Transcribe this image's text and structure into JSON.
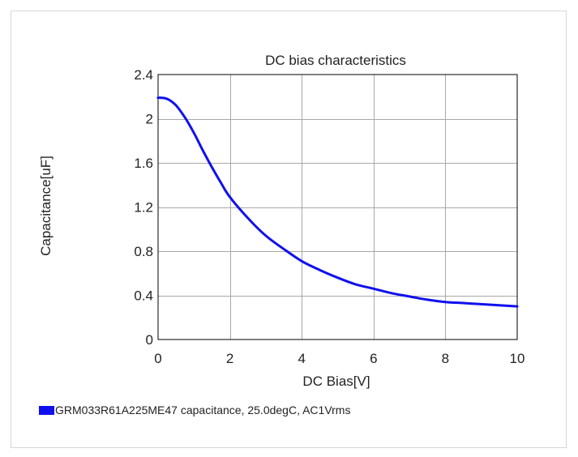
{
  "chart_data": {
    "type": "line",
    "title": "DC bias characteristics",
    "xlabel": "DC Bias[V]",
    "ylabel": "Capacitance[uF]",
    "xlim": [
      0,
      10
    ],
    "ylim": [
      0,
      2.4
    ],
    "xticks": [
      0,
      2,
      4,
      6,
      8,
      10
    ],
    "yticks": [
      0,
      0.4,
      0.8,
      1.2,
      1.6,
      2,
      2.4
    ],
    "xtick_labels": [
      "0",
      "2",
      "4",
      "6",
      "8",
      "10"
    ],
    "ytick_labels": [
      "0",
      "0.4",
      "0.8",
      "1.2",
      "1.6",
      "2",
      "2.4"
    ],
    "grid": true,
    "legend_position": "bottom-left",
    "series": [
      {
        "name": "GRM033R61A225ME47 capacitance, 25.0degC, AC1Vrms",
        "color": "#1010ee",
        "x": [
          0,
          0.25,
          0.5,
          0.75,
          1,
          1.25,
          1.5,
          1.75,
          2,
          2.5,
          3,
          3.5,
          4,
          4.5,
          5,
          5.5,
          6,
          6.5,
          7,
          7.5,
          8,
          8.5,
          9,
          9.5,
          10
        ],
        "y": [
          2.19,
          2.18,
          2.12,
          2.01,
          1.87,
          1.71,
          1.56,
          1.42,
          1.29,
          1.1,
          0.94,
          0.82,
          0.71,
          0.63,
          0.56,
          0.5,
          0.46,
          0.42,
          0.39,
          0.36,
          0.34,
          0.33,
          0.32,
          0.31,
          0.3
        ]
      }
    ]
  }
}
